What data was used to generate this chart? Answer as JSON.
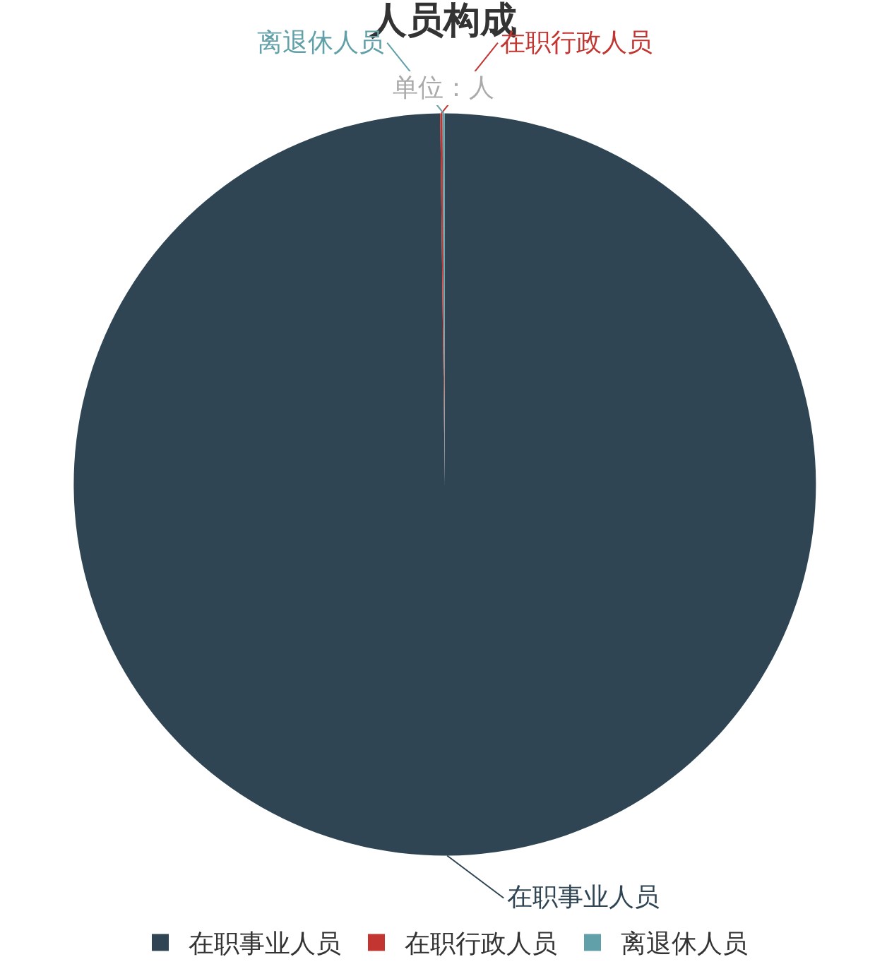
{
  "chart_data": {
    "type": "pie",
    "title": "人员构成",
    "subtitle": "单位：人",
    "categories": [
      "在职事业人员",
      "在职行政人员",
      "离退休人员"
    ],
    "values": [
      99.8,
      0.1,
      0.1
    ],
    "colors": [
      "#2f4554",
      "#c23531",
      "#61a0a8"
    ],
    "legend": "bottom"
  }
}
